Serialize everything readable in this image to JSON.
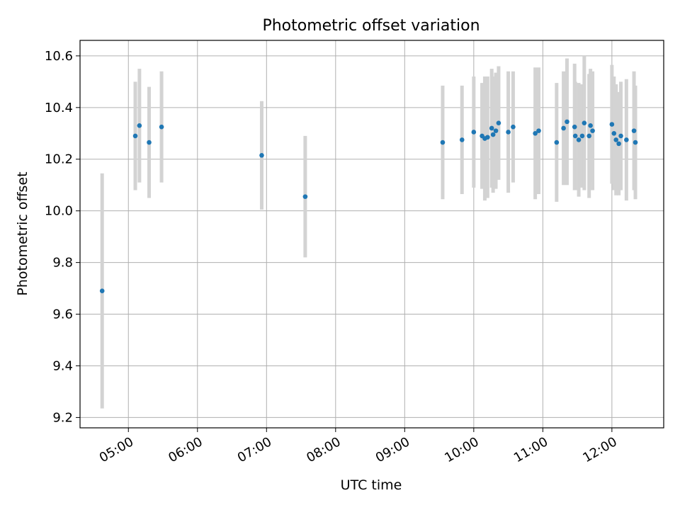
{
  "chart_data": {
    "type": "scatter",
    "title": "Photometric offset variation",
    "xlabel": "UTC time",
    "ylabel": "Photometric offset",
    "xlim": [
      4.3,
      12.75
    ],
    "ylim": [
      9.16,
      10.66
    ],
    "grid": true,
    "colors": {
      "point": "#1f77b4",
      "errorbar": "#d3d3d3",
      "grid": "#b0b0b0",
      "axis": "#000000"
    },
    "x_ticks": [
      {
        "value": 5,
        "label": "05:00"
      },
      {
        "value": 6,
        "label": "06:00"
      },
      {
        "value": 7,
        "label": "07:00"
      },
      {
        "value": 8,
        "label": "08:00"
      },
      {
        "value": 9,
        "label": "09:00"
      },
      {
        "value": 10,
        "label": "10:00"
      },
      {
        "value": 11,
        "label": "11:00"
      },
      {
        "value": 12,
        "label": "12:00"
      }
    ],
    "y_ticks": [
      {
        "value": 9.2,
        "label": "9.2"
      },
      {
        "value": 9.4,
        "label": "9.4"
      },
      {
        "value": 9.6,
        "label": "9.6"
      },
      {
        "value": 9.8,
        "label": "9.8"
      },
      {
        "value": 10.0,
        "label": "10.0"
      },
      {
        "value": 10.2,
        "label": "10.2"
      },
      {
        "value": 10.4,
        "label": "10.4"
      },
      {
        "value": 10.6,
        "label": "10.6"
      }
    ],
    "points": [
      {
        "x": 4.62,
        "y": 9.69,
        "yerr": 0.455
      },
      {
        "x": 5.1,
        "y": 10.29,
        "yerr": 0.21
      },
      {
        "x": 5.16,
        "y": 10.33,
        "yerr": 0.22
      },
      {
        "x": 5.3,
        "y": 10.265,
        "yerr": 0.215
      },
      {
        "x": 5.48,
        "y": 10.325,
        "yerr": 0.215
      },
      {
        "x": 6.93,
        "y": 10.215,
        "yerr": 0.21
      },
      {
        "x": 7.56,
        "y": 10.055,
        "yerr": 0.235
      },
      {
        "x": 9.55,
        "y": 10.265,
        "yerr": 0.22
      },
      {
        "x": 9.83,
        "y": 10.275,
        "yerr": 0.21
      },
      {
        "x": 10.0,
        "y": 10.305,
        "yerr": 0.215
      },
      {
        "x": 10.12,
        "y": 10.29,
        "yerr": 0.205
      },
      {
        "x": 10.16,
        "y": 10.28,
        "yerr": 0.24
      },
      {
        "x": 10.2,
        "y": 10.285,
        "yerr": 0.235
      },
      {
        "x": 10.26,
        "y": 10.32,
        "yerr": 0.23
      },
      {
        "x": 10.28,
        "y": 10.295,
        "yerr": 0.225
      },
      {
        "x": 10.32,
        "y": 10.31,
        "yerr": 0.225
      },
      {
        "x": 10.36,
        "y": 10.34,
        "yerr": 0.22
      },
      {
        "x": 10.5,
        "y": 10.305,
        "yerr": 0.235
      },
      {
        "x": 10.57,
        "y": 10.325,
        "yerr": 0.215
      },
      {
        "x": 10.89,
        "y": 10.3,
        "yerr": 0.255
      },
      {
        "x": 10.94,
        "y": 10.31,
        "yerr": 0.245
      },
      {
        "x": 11.2,
        "y": 10.265,
        "yerr": 0.23
      },
      {
        "x": 11.3,
        "y": 10.32,
        "yerr": 0.22
      },
      {
        "x": 11.35,
        "y": 10.345,
        "yerr": 0.245
      },
      {
        "x": 11.46,
        "y": 10.325,
        "yerr": 0.245
      },
      {
        "x": 11.47,
        "y": 10.29,
        "yerr": 0.21
      },
      {
        "x": 11.52,
        "y": 10.275,
        "yerr": 0.22
      },
      {
        "x": 11.57,
        "y": 10.29,
        "yerr": 0.2
      },
      {
        "x": 11.6,
        "y": 10.34,
        "yerr": 0.26
      },
      {
        "x": 11.67,
        "y": 10.29,
        "yerr": 0.24
      },
      {
        "x": 11.69,
        "y": 10.33,
        "yerr": 0.22
      },
      {
        "x": 11.72,
        "y": 10.31,
        "yerr": 0.23
      },
      {
        "x": 12.0,
        "y": 10.335,
        "yerr": 0.23
      },
      {
        "x": 12.03,
        "y": 10.3,
        "yerr": 0.22
      },
      {
        "x": 12.06,
        "y": 10.275,
        "yerr": 0.215
      },
      {
        "x": 12.1,
        "y": 10.26,
        "yerr": 0.2
      },
      {
        "x": 12.13,
        "y": 10.29,
        "yerr": 0.21
      },
      {
        "x": 12.21,
        "y": 10.275,
        "yerr": 0.235
      },
      {
        "x": 12.32,
        "y": 10.31,
        "yerr": 0.23
      },
      {
        "x": 12.34,
        "y": 10.265,
        "yerr": 0.22
      }
    ]
  }
}
